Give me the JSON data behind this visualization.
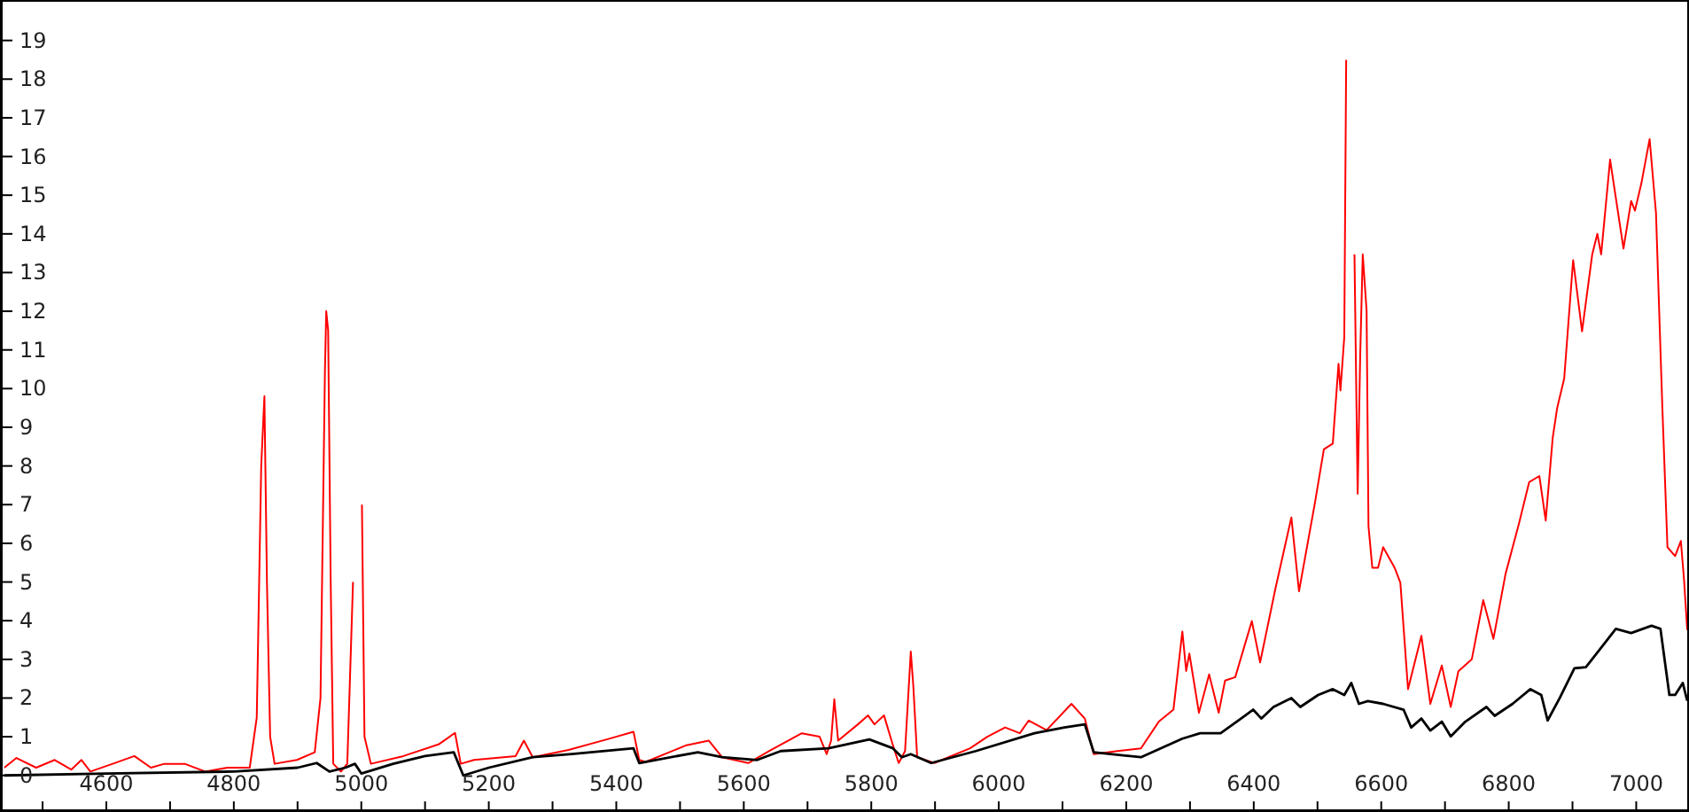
{
  "chart_data": {
    "type": "line",
    "xlim": [
      4436,
      7080
    ],
    "ylim": [
      -0.9,
      20
    ],
    "xticks": [
      {
        "value": 4500,
        "label": null
      },
      4600,
      {
        "value": 4700,
        "label": null
      },
      4800,
      {
        "value": 4900,
        "label": null
      },
      5000,
      {
        "value": 5100,
        "label": null
      },
      5200,
      {
        "value": 5300,
        "label": null
      },
      5400,
      {
        "value": 5500,
        "label": null
      },
      5600,
      {
        "value": 5700,
        "label": null
      },
      5800,
      {
        "value": 5900,
        "label": null
      },
      6000,
      {
        "value": 6100,
        "label": null
      },
      6200,
      {
        "value": 6300,
        "label": null
      },
      6400,
      {
        "value": 6500,
        "label": null
      },
      6600,
      {
        "value": 6700,
        "label": null
      },
      6800,
      {
        "value": 6900,
        "label": null
      },
      7000
    ],
    "yticks": [
      0,
      1,
      2,
      3,
      4,
      5,
      6,
      7,
      8,
      9,
      10,
      11,
      12,
      13,
      14,
      15,
      16,
      17,
      18,
      19
    ],
    "marker": "none",
    "line_style": "solid",
    "series": [
      {
        "color": "#ff0000",
        "x": [
          4440,
          4459,
          4490,
          4519,
          4545,
          4561,
          4575,
          4610,
          4644,
          4670,
          4691,
          4723,
          4755,
          4790,
          4825,
          4836,
          4843,
          4848,
          4852,
          4857,
          4864,
          4899,
          4927,
          4936,
          4943,
          4945,
          4948,
          4952,
          4956,
          4968,
          4978,
          4987,
          4992,
          4996,
          5001,
          5005,
          5015,
          5066,
          5121,
          5147,
          5156,
          5177,
          5242,
          5255,
          5269,
          5325,
          5385,
          5427,
          5436,
          5446,
          5510,
          5545,
          5566,
          5607,
          5640,
          5691,
          5719,
          5730,
          5737,
          5742,
          5748,
          5779,
          5795,
          5805,
          5820,
          5834,
          5843,
          5853,
          5862,
          5866,
          5872,
          5899,
          5955,
          5982,
          6010,
          6033,
          6047,
          6075,
          6114,
          6135,
          6149,
          6186,
          6223,
          6251,
          6274,
          6288,
          6294,
          6299,
          6314,
          6330,
          6345,
          6355,
          6371,
          6397,
          6410,
          6434,
          6459,
          6471,
          6496,
          6510,
          6524,
          6533,
          6536,
          6542,
          6545,
          6550,
          6556,
          6558,
          6563,
          6567,
          6571,
          6577,
          6580,
          6586,
          6595,
          6603,
          6621,
          6630,
          6642,
          6663,
          6677,
          6695,
          6709,
          6721,
          6742,
          6760,
          6776,
          6795,
          6816,
          6832,
          6848,
          6858,
          6869,
          6876,
          6887,
          6901,
          6915,
          6931,
          6939,
          6945,
          6959,
          6980,
          6992,
          6998,
          7008,
          7021,
          7031,
          7041,
          7049,
          7061,
          7070,
          7075,
          7080
        ],
        "values": [
          0.2,
          0.45,
          0.2,
          0.4,
          0.15,
          0.4,
          0.1,
          0.3,
          0.5,
          0.2,
          0.3,
          0.3,
          0.1,
          0.2,
          0.2,
          1.5,
          8,
          9.8,
          5,
          1,
          0.3,
          0.4,
          0.6,
          2,
          10.5,
          12,
          11.5,
          5,
          0.3,
          0.1,
          0.3,
          5,
          null,
          null,
          7,
          1,
          0.3,
          0.5,
          0.8,
          1.1,
          0.3,
          0.4,
          0.5,
          0.9,
          0.47,
          0.66,
          0.93,
          1.13,
          0.4,
          0.35,
          0.78,
          0.9,
          0.47,
          0.32,
          0.63,
          1.09,
          1.0,
          0.55,
          0.9,
          1.97,
          0.9,
          1.32,
          1.55,
          1.32,
          1.55,
          0.78,
          0.32,
          0.63,
          3.2,
          2.3,
          0.47,
          0.32,
          0.7,
          1.0,
          1.24,
          1.09,
          1.42,
          1.17,
          1.85,
          1.47,
          0.55,
          0.63,
          0.7,
          1.39,
          1.7,
          3.72,
          2.7,
          3.15,
          1.62,
          2.61,
          1.62,
          2.45,
          2.54,
          3.99,
          2.92,
          4.83,
          6.67,
          4.76,
          7.05,
          8.43,
          8.58,
          10.64,
          9.95,
          11.33,
          18.5,
          null,
          null,
          13.47,
          7.28,
          10.87,
          13.47,
          12.02,
          6.44,
          5.37,
          5.37,
          5.9,
          5.37,
          4.98,
          2.23,
          3.61,
          1.85,
          2.84,
          1.77,
          2.69,
          3.0,
          4.53,
          3.53,
          5.21,
          6.51,
          7.58,
          7.74,
          6.59,
          8.73,
          9.5,
          10.26,
          13.32,
          11.48,
          13.47,
          14.0,
          13.47,
          15.92,
          13.62,
          14.85,
          14.6,
          15.3,
          16.45,
          14.54,
          9.5,
          5.9,
          5.67,
          6.06,
          5.06,
          3.76
        ]
      },
      {
        "color": "#000000",
        "x": [
          4440,
          4600,
          4800,
          4900,
          4930,
          4950,
          4975,
          4990,
          5000,
          5050,
          5100,
          5145,
          5160,
          5200,
          5269,
          5330,
          5427,
          5436,
          5528,
          5566,
          5621,
          5658,
          5733,
          5797,
          5834,
          5848,
          5862,
          5894,
          5964,
          6056,
          6103,
          6135,
          6149,
          6223,
          6288,
          6316,
          6348,
          6380,
          6399,
          6412,
          6431,
          6459,
          6473,
          6501,
          6524,
          6542,
          6553,
          6565,
          6579,
          6603,
          6635,
          6647,
          6663,
          6677,
          6695,
          6709,
          6732,
          6765,
          6778,
          6806,
          6834,
          6851,
          6861,
          6880,
          6903,
          6921,
          6945,
          6968,
          6992,
          7024,
          7038,
          7052,
          7061,
          7073,
          7080
        ],
        "values": [
          0.0,
          0.05,
          0.1,
          0.2,
          0.32,
          0.1,
          0.2,
          0.3,
          0.05,
          0.3,
          0.5,
          0.6,
          0.0,
          0.2,
          0.47,
          0.55,
          0.7,
          0.32,
          0.6,
          0.47,
          0.4,
          0.63,
          0.7,
          0.93,
          0.7,
          0.47,
          0.55,
          0.32,
          0.63,
          1.09,
          1.24,
          1.32,
          0.6,
          0.47,
          0.95,
          1.09,
          1.09,
          1.47,
          1.7,
          1.47,
          1.77,
          2.0,
          1.77,
          2.08,
          2.23,
          2.08,
          2.39,
          1.85,
          1.92,
          1.85,
          1.7,
          1.24,
          1.47,
          1.16,
          1.39,
          1.01,
          1.39,
          1.77,
          1.54,
          1.85,
          2.23,
          2.08,
          1.42,
          2.0,
          2.77,
          2.8,
          3.3,
          3.79,
          3.68,
          3.87,
          3.79,
          2.08,
          2.08,
          2.39,
          1.93
        ]
      }
    ]
  }
}
